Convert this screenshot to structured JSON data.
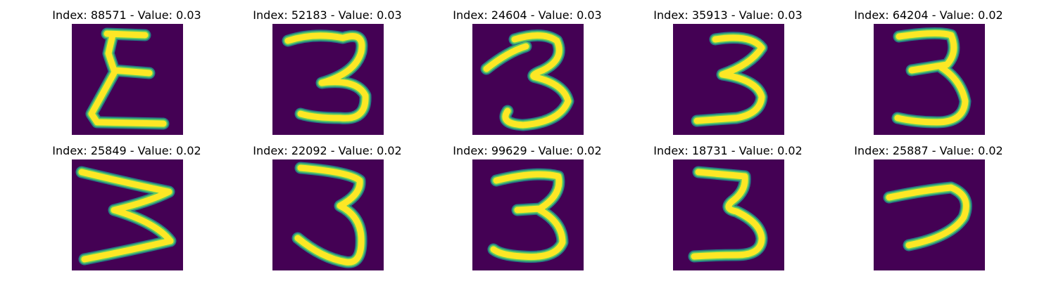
{
  "panels": [
    {
      "title": "Index: 88571 - Value: 0.03"
    },
    {
      "title": "Index: 52183 - Value: 0.03"
    },
    {
      "title": "Index: 24604 - Value: 0.03"
    },
    {
      "title": "Index: 35913 - Value: 0.03"
    },
    {
      "title": "Index: 64204 - Value: 0.02"
    },
    {
      "title": "Index: 25849 - Value: 0.02"
    },
    {
      "title": "Index: 22092 - Value: 0.02"
    },
    {
      "title": "Index: 99629 - Value: 0.02"
    },
    {
      "title": "Index: 18731 - Value: 0.02"
    },
    {
      "title": "Index: 25887 - Value: 0.02"
    }
  ],
  "colors": {
    "background": "#440154",
    "edge": "#21918c",
    "mid": "#5ec962",
    "core": "#fde725"
  }
}
